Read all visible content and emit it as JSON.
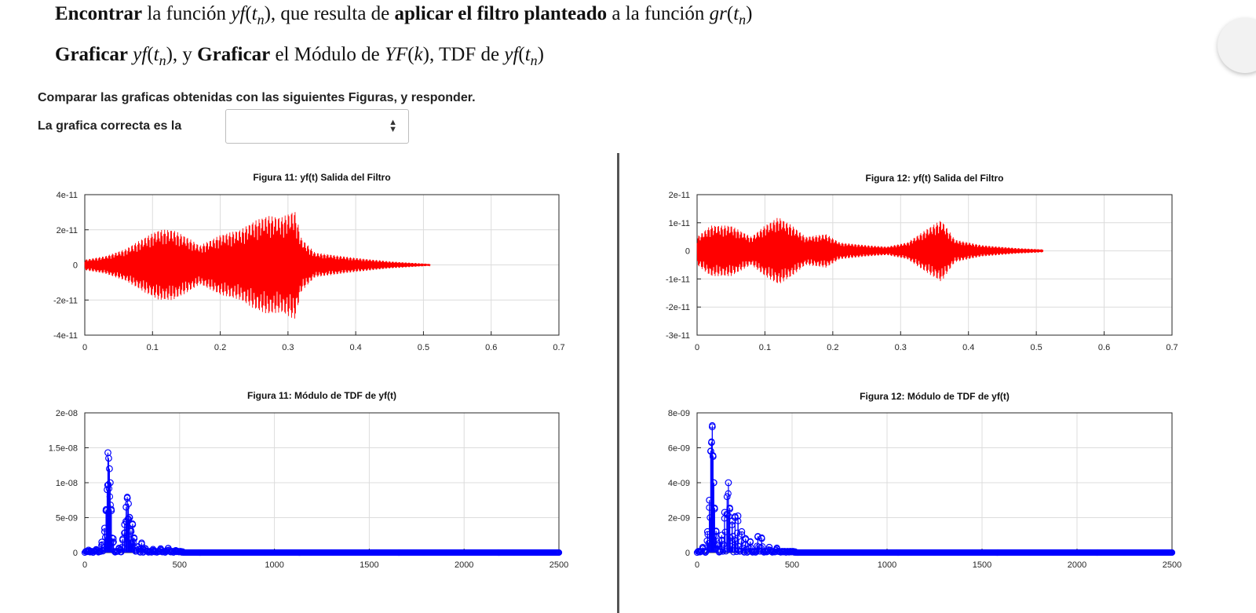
{
  "question": {
    "line1": {
      "verb": "Encontrar",
      "t1": " la función ",
      "yf": "yf",
      "t2": "(",
      "tn": "t",
      "n": "n",
      "t3": "), que resulta de ",
      "bold2": "aplicar el filtro planteado",
      "t4": " a la función ",
      "gr": "gr",
      "t5": "(",
      "tn2": "t",
      "n2": "n",
      "t6": ")"
    },
    "line2": {
      "verb": "Graficar",
      "yf": " yf",
      "t1": "(",
      "tn": "t",
      "n": "n",
      "t2": "), y ",
      "verb2": "Graficar",
      "t3": " el Módulo de ",
      "YF": "YF",
      "t4": "(",
      "k": "k",
      "t5": "), TDF de ",
      "yf2": "yf",
      "t6": "(",
      "tn2": "t",
      "n2": "n",
      "t7": ")"
    },
    "compare_text": "Comparar las graficas obtenidas con las siguientes Figuras, y responder.",
    "answer_label": "La grafica correcta es la",
    "select_value": ""
  },
  "colors": {
    "time_signal": "#ff0000",
    "spectrum": "#0000ff",
    "grid": "#dcdcdc"
  },
  "chart_data": [
    {
      "type": "line",
      "title": "Figura 11: yf(t) Salida del Filtro",
      "xlim": [
        0,
        0.7
      ],
      "ylim": [
        -4e-11,
        4e-11
      ],
      "x_ticks": [
        0,
        0.1,
        0.2,
        0.3,
        0.4,
        0.5,
        0.6,
        0.7
      ],
      "x_tick_labels": [
        "0",
        "0.1",
        "0.2",
        "0.3",
        "0.4",
        "0.5",
        "0.6",
        "0.7"
      ],
      "y_ticks": [
        4e-11,
        2e-11,
        0,
        -2e-11,
        -4e-11
      ],
      "y_tick_labels": [
        "4e-11",
        "2e-11",
        "0",
        "-2e-11",
        "-4e-11"
      ],
      "signal_end": 0.51,
      "envelope": [
        [
          0,
          3e-12
        ],
        [
          0.03,
          5e-12
        ],
        [
          0.06,
          9e-12
        ],
        [
          0.09,
          1.6e-11
        ],
        [
          0.11,
          2e-11
        ],
        [
          0.13,
          2e-11
        ],
        [
          0.15,
          1.6e-11
        ],
        [
          0.17,
          1.1e-11
        ],
        [
          0.2,
          1.7e-11
        ],
        [
          0.23,
          2e-11
        ],
        [
          0.25,
          2.5e-11
        ],
        [
          0.27,
          2.8e-11
        ],
        [
          0.29,
          2.7e-11
        ],
        [
          0.31,
          3.1e-11
        ],
        [
          0.32,
          1.5e-11
        ],
        [
          0.34,
          7e-12
        ],
        [
          0.36,
          6e-12
        ],
        [
          0.4,
          4e-12
        ],
        [
          0.45,
          2e-12
        ],
        [
          0.51,
          5e-13
        ]
      ]
    },
    {
      "type": "line",
      "title": "Figura 12: yf(t) Salida del Filtro",
      "xlim": [
        0,
        0.7
      ],
      "ylim": [
        -3e-11,
        2e-11
      ],
      "x_ticks": [
        0,
        0.1,
        0.2,
        0.3,
        0.4,
        0.5,
        0.6,
        0.7
      ],
      "x_tick_labels": [
        "0",
        "0.1",
        "0.2",
        "0.3",
        "0.4",
        "0.5",
        "0.6",
        "0.7"
      ],
      "y_ticks": [
        2e-11,
        1e-11,
        0,
        -1e-11,
        -2e-11,
        -3e-11
      ],
      "y_tick_labels": [
        "2e-11",
        "1e-11",
        "0",
        "-1e-11",
        "-2e-11",
        "-3e-11"
      ],
      "signal_end": 0.51,
      "envelope": [
        [
          0,
          5e-12
        ],
        [
          0.02,
          9e-12
        ],
        [
          0.05,
          9e-12
        ],
        [
          0.08,
          5e-12
        ],
        [
          0.1,
          9e-12
        ],
        [
          0.12,
          1.2e-11
        ],
        [
          0.14,
          9e-12
        ],
        [
          0.16,
          5e-12
        ],
        [
          0.19,
          6e-12
        ],
        [
          0.21,
          3e-12
        ],
        [
          0.25,
          2e-12
        ],
        [
          0.28,
          1.5e-12
        ],
        [
          0.31,
          3e-12
        ],
        [
          0.34,
          8e-12
        ],
        [
          0.36,
          1.1e-11
        ],
        [
          0.38,
          4e-12
        ],
        [
          0.42,
          2e-12
        ],
        [
          0.47,
          1e-12
        ],
        [
          0.51,
          5e-13
        ]
      ]
    },
    {
      "type": "scatter",
      "title": "Figura 11: Módulo de TDF de yf(t)",
      "xlim": [
        0,
        2500
      ],
      "ylim": [
        0,
        2e-08
      ],
      "x_ticks": [
        0,
        500,
        1000,
        1500,
        2000,
        2500
      ],
      "x_tick_labels": [
        "0",
        "500",
        "1000",
        "1500",
        "2000",
        "2500"
      ],
      "y_ticks": [
        2e-08,
        1.5e-08,
        1e-08,
        5e-09,
        0
      ],
      "y_tick_labels": [
        "2e-08",
        "1.5e-08",
        "1e-08",
        "5e-09",
        "0"
      ],
      "peaks": [
        [
          20,
          2e-10
        ],
        [
          60,
          4e-10
        ],
        [
          90,
          1.5e-09
        ],
        [
          105,
          3.5e-09
        ],
        [
          112,
          6e-09
        ],
        [
          118,
          9e-09
        ],
        [
          122,
          1.43e-08
        ],
        [
          126,
          1.35e-08
        ],
        [
          130,
          1.2e-08
        ],
        [
          134,
          1e-08
        ],
        [
          140,
          6e-09
        ],
        [
          150,
          2e-09
        ],
        [
          180,
          5e-10
        ],
        [
          200,
          1.8e-09
        ],
        [
          210,
          4e-09
        ],
        [
          218,
          6.5e-09
        ],
        [
          224,
          7.8e-09
        ],
        [
          230,
          7e-09
        ],
        [
          236,
          5e-09
        ],
        [
          244,
          3e-09
        ],
        [
          252,
          4e-09
        ],
        [
          260,
          2e-09
        ],
        [
          280,
          8e-10
        ],
        [
          300,
          1.2e-09
        ],
        [
          320,
          5e-10
        ],
        [
          360,
          3e-10
        ],
        [
          400,
          4e-10
        ],
        [
          440,
          6e-10
        ],
        [
          480,
          2e-10
        ]
      ]
    },
    {
      "type": "scatter",
      "title": "Figura 12: Módulo de TDF de yf(t)",
      "xlim": [
        0,
        2500
      ],
      "ylim": [
        0,
        8e-09
      ],
      "x_ticks": [
        0,
        500,
        1000,
        1500,
        2000,
        2500
      ],
      "x_tick_labels": [
        "0",
        "500",
        "1000",
        "1500",
        "2000",
        "2500"
      ],
      "y_ticks": [
        8e-09,
        6e-09,
        4e-09,
        2e-09,
        0
      ],
      "y_tick_labels": [
        "8e-09",
        "6e-09",
        "4e-09",
        "2e-09",
        "0"
      ],
      "peaks": [
        [
          30,
          3e-10
        ],
        [
          55,
          1.2e-09
        ],
        [
          65,
          3e-09
        ],
        [
          72,
          5.8e-09
        ],
        [
          76,
          6.3e-09
        ],
        [
          80,
          7.2e-09
        ],
        [
          84,
          5.5e-09
        ],
        [
          88,
          4e-09
        ],
        [
          92,
          2.5e-09
        ],
        [
          100,
          1.2e-09
        ],
        [
          110,
          5e-10
        ],
        [
          130,
          1e-09
        ],
        [
          145,
          2.3e-09
        ],
        [
          158,
          3.2e-09
        ],
        [
          165,
          4e-09
        ],
        [
          172,
          2.5e-09
        ],
        [
          185,
          1.8e-09
        ],
        [
          200,
          2e-09
        ],
        [
          215,
          2.1e-09
        ],
        [
          235,
          1.2e-09
        ],
        [
          255,
          8e-10
        ],
        [
          280,
          6e-10
        ],
        [
          320,
          9e-10
        ],
        [
          340,
          8e-10
        ],
        [
          380,
          3e-10
        ],
        [
          420,
          2e-10
        ]
      ]
    }
  ]
}
